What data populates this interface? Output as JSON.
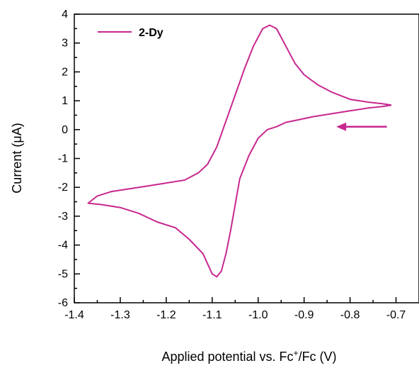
{
  "chart_data": {
    "type": "line",
    "title": "",
    "xlabel": {
      "prefix": "Applied potential vs. Fc",
      "sup": "+",
      "suffix": "/Fc (V)"
    },
    "ylabel": "Current (μA)",
    "xlim": [
      -1.4,
      -0.65
    ],
    "ylim": [
      -6,
      4
    ],
    "xticks": [
      -1.4,
      -1.3,
      -1.2,
      -1.1,
      -1.0,
      -0.9,
      -0.8,
      -0.7
    ],
    "xtick_labels": [
      "-1.4",
      "-1.3",
      "-1.2",
      "-1.1",
      "-1.0",
      "-0.9",
      "-0.8",
      "-0.7"
    ],
    "yticks": [
      -6,
      -5,
      -4,
      -3,
      -2,
      -1,
      0,
      1,
      2,
      3,
      4
    ],
    "ytick_labels": [
      "-6",
      "-5",
      "-4",
      "-3",
      "-2",
      "-1",
      "0",
      "1",
      "2",
      "3",
      "4"
    ],
    "grid": false,
    "legend_position": "top-left",
    "colors": {
      "series": "#c8278f",
      "axis": "#000000"
    },
    "series": [
      {
        "name": "2-Dy",
        "x": [
          -0.71,
          -0.73,
          -0.76,
          -0.8,
          -0.84,
          -0.88,
          -0.91,
          -0.94,
          -0.96,
          -0.98,
          -1.0,
          -1.02,
          -1.04,
          -1.05,
          -1.06,
          -1.07,
          -1.08,
          -1.09,
          -1.1,
          -1.12,
          -1.15,
          -1.18,
          -1.22,
          -1.26,
          -1.3,
          -1.34,
          -1.37,
          -1.35,
          -1.32,
          -1.28,
          -1.24,
          -1.2,
          -1.16,
          -1.13,
          -1.11,
          -1.09,
          -1.07,
          -1.05,
          -1.03,
          -1.01,
          -0.99,
          -0.975,
          -0.96,
          -0.94,
          -0.92,
          -0.9,
          -0.87,
          -0.84,
          -0.8,
          -0.76,
          -0.73,
          -0.71
        ],
        "y": [
          0.85,
          0.8,
          0.75,
          0.65,
          0.55,
          0.45,
          0.35,
          0.25,
          0.1,
          0.0,
          -0.3,
          -0.9,
          -1.7,
          -2.6,
          -3.5,
          -4.3,
          -4.9,
          -5.1,
          -5.0,
          -4.3,
          -3.8,
          -3.4,
          -3.2,
          -2.9,
          -2.7,
          -2.6,
          -2.55,
          -2.3,
          -2.15,
          -2.05,
          -1.95,
          -1.85,
          -1.75,
          -1.5,
          -1.2,
          -0.6,
          0.3,
          1.2,
          2.1,
          2.9,
          3.5,
          3.62,
          3.5,
          2.9,
          2.3,
          1.9,
          1.55,
          1.3,
          1.05,
          0.95,
          0.9,
          0.85
        ]
      }
    ],
    "annotation": {
      "type": "arrow",
      "direction": "left",
      "from_x": -0.72,
      "to_x": -0.83,
      "y": 0.1
    }
  }
}
